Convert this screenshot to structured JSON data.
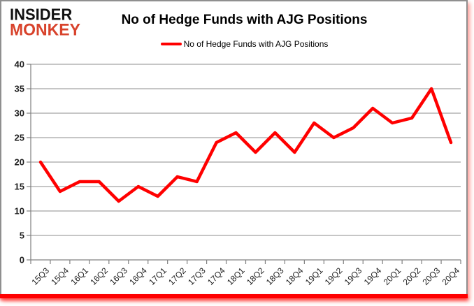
{
  "logo": {
    "line1": "INSIDER",
    "line2": "MONKEY"
  },
  "header": {
    "title": "No of Hedge Funds with AJG Positions"
  },
  "legend": {
    "label": "No of Hedge Funds with AJG Positions",
    "color": "#ff0000"
  },
  "chart_data": {
    "type": "line",
    "title": "No of Hedge Funds with AJG Positions",
    "categories": [
      "15Q3",
      "15Q4",
      "16Q1",
      "16Q2",
      "16Q3",
      "16Q4",
      "17Q1",
      "17Q2",
      "17Q3",
      "17Q4",
      "18Q1",
      "18Q2",
      "18Q3",
      "18Q4",
      "19Q1",
      "19Q2",
      "19Q3",
      "19Q4",
      "20Q1",
      "20Q2",
      "20Q3",
      "20Q4"
    ],
    "series": [
      {
        "name": "No of Hedge Funds with AJG Positions",
        "color": "#ff0000",
        "values": [
          20,
          14,
          16,
          16,
          12,
          15,
          13,
          17,
          16,
          24,
          26,
          22,
          26,
          22,
          28,
          25,
          27,
          31,
          28,
          29,
          35,
          24
        ]
      }
    ],
    "xlabel": "",
    "ylabel": "",
    "ylim": [
      0,
      40
    ],
    "yticks": [
      0,
      5,
      10,
      15,
      20,
      25,
      30,
      35,
      40
    ],
    "grid": true,
    "legend_position": "top"
  },
  "colors": {
    "accent_red": "#ff0000",
    "logo_red": "#d8432c",
    "grid_line": "#a3a3a3",
    "axis_line": "#808080",
    "tick_text": "#1f1f1f",
    "frame_border": "#8f8f8f"
  }
}
